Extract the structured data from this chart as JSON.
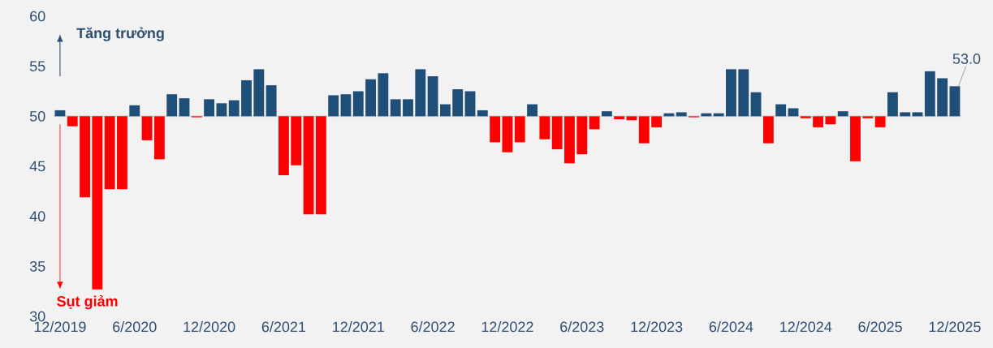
{
  "chart_data": {
    "type": "bar",
    "categories": [
      "12/2019",
      null,
      null,
      null,
      null,
      null,
      "6/2020",
      null,
      null,
      null,
      null,
      null,
      "12/2020",
      null,
      null,
      null,
      null,
      null,
      "6/2021",
      null,
      null,
      null,
      null,
      null,
      "12/2021",
      null,
      null,
      null,
      null,
      null,
      "6/2022",
      null,
      null,
      null,
      null,
      null,
      "12/2022",
      null,
      null,
      null,
      null,
      null,
      "6/2023",
      null,
      null,
      null,
      null,
      null,
      "12/2023",
      null,
      null,
      null,
      null,
      null,
      "6/2024",
      null,
      null,
      null,
      null,
      null,
      "12/2024",
      null,
      null,
      null,
      null,
      null,
      "6/2025",
      null,
      null,
      null,
      null,
      null,
      "12/2025"
    ],
    "base": [
      50,
      50,
      50,
      50,
      50,
      50,
      50,
      50,
      50,
      50,
      50,
      50,
      50,
      50,
      50,
      50,
      50,
      50,
      50,
      50,
      50,
      50,
      50,
      50,
      50,
      50,
      50,
      50,
      50,
      50,
      50,
      50,
      50,
      50,
      50,
      50,
      50,
      50,
      50,
      50,
      50,
      50,
      50,
      50,
      50,
      50,
      50,
      50,
      50,
      50,
      50,
      50,
      50,
      50,
      50,
      50,
      50,
      50,
      50,
      50,
      50,
      50,
      50,
      50,
      50,
      50,
      50,
      50,
      50,
      50,
      50,
      50,
      50
    ],
    "values": [
      0.6,
      -1.0,
      -8.1,
      -17.3,
      -7.3,
      -7.3,
      1.1,
      -2.4,
      -4.3,
      2.2,
      1.8,
      -0.1,
      1.7,
      1.3,
      1.6,
      3.6,
      4.7,
      3.1,
      -5.9,
      -4.9,
      -9.8,
      -9.8,
      2.1,
      2.2,
      2.5,
      3.7,
      4.3,
      1.7,
      1.7,
      4.7,
      4.0,
      1.2,
      2.7,
      2.5,
      0.6,
      -2.6,
      -3.6,
      -2.6,
      1.2,
      -2.3,
      -3.3,
      -4.7,
      -3.8,
      -1.3,
      0.5,
      -0.3,
      -0.4,
      -2.7,
      -1.1,
      0.3,
      0.4,
      -0.1,
      0.3,
      0.3,
      4.7,
      4.7,
      2.4,
      -2.7,
      1.2,
      0.8,
      -0.2,
      -1.1,
      -0.8,
      0.5,
      -4.5,
      -0.2,
      -1.1,
      2.4,
      0.4,
      0.4,
      4.5,
      3.8,
      3.0
    ],
    "colors": [
      "#1f4e79",
      "#ff0000",
      "#ff0000",
      "#ff0000",
      "#ff0000",
      "#ff0000",
      "#1f4e79",
      "#ff0000",
      "#ff0000",
      "#1f4e79",
      "#1f4e79",
      "#ff0000",
      "#1f4e79",
      "#1f4e79",
      "#1f4e79",
      "#1f4e79",
      "#1f4e79",
      "#1f4e79",
      "#ff0000",
      "#ff0000",
      "#ff0000",
      "#ff0000",
      "#1f4e79",
      "#1f4e79",
      "#1f4e79",
      "#1f4e79",
      "#1f4e79",
      "#1f4e79",
      "#1f4e79",
      "#1f4e79",
      "#1f4e79",
      "#1f4e79",
      "#1f4e79",
      "#1f4e79",
      "#1f4e79",
      "#ff0000",
      "#ff0000",
      "#ff0000",
      "#1f4e79",
      "#ff0000",
      "#ff0000",
      "#ff0000",
      "#ff0000",
      "#ff0000",
      "#1f4e79",
      "#ff0000",
      "#ff0000",
      "#ff0000",
      "#ff0000",
      "#1f4e79",
      "#1f4e79",
      "#ff0000",
      "#1f4e79",
      "#1f4e79",
      "#1f4e79",
      "#1f4e79",
      "#1f4e79",
      "#ff0000",
      "#1f4e79",
      "#1f4e79",
      "#ff0000",
      "#ff0000",
      "#ff0000",
      "#1f4e79",
      "#ff0000",
      "#ff0000",
      "#ff0000",
      "#1f4e79",
      "#1f4e79",
      "#1f4e79",
      "#1f4e79",
      "#1f4e79",
      "#1f4e79"
    ],
    "ylim": [
      30,
      60
    ],
    "yticks": [
      30,
      35,
      40,
      45,
      50,
      55,
      60
    ],
    "ref_lines": [
      {
        "axis": "y",
        "value": 50,
        "color": "#d9d9d9"
      }
    ],
    "annotations": [
      "Tăng trưởng",
      "Sụt giảm",
      {
        "text": "53.0",
        "x": "12/2025",
        "y": 53.0
      }
    ],
    "grid": false
  }
}
